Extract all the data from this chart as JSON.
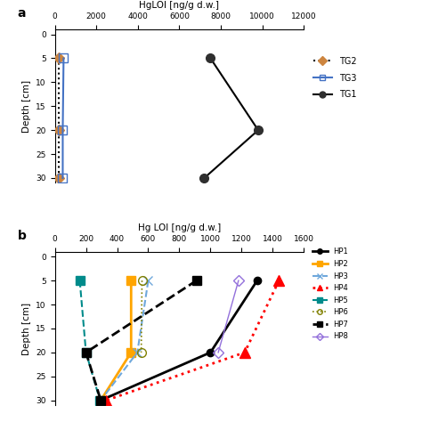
{
  "panel_a": {
    "title": "HgLOI [ng/g d.w.]",
    "xlim": [
      0,
      12000
    ],
    "xticks": [
      0,
      2000,
      4000,
      6000,
      8000,
      10000,
      12000
    ],
    "ylim": [
      31,
      -1
    ],
    "yticks": [
      0,
      5,
      10,
      15,
      20,
      25,
      30
    ],
    "ylabel": "Depth [cm]",
    "TG1": {
      "depth": [
        5,
        20,
        30
      ],
      "values": [
        7500,
        9800,
        7200
      ]
    },
    "TG2": {
      "depth": [
        5,
        20,
        30
      ],
      "values": [
        180,
        180,
        180
      ]
    },
    "TG3": {
      "depth": [
        5,
        20,
        30
      ],
      "values": [
        420,
        380,
        380
      ]
    }
  },
  "panel_b": {
    "title": "Hg LOI [ng/g d.w.]",
    "xlim": [
      0,
      1600
    ],
    "xticks": [
      0,
      200,
      400,
      600,
      800,
      1000,
      1200,
      1400,
      1600
    ],
    "ylim": [
      31,
      -1
    ],
    "yticks": [
      0,
      5,
      10,
      15,
      20,
      25,
      30
    ],
    "ylabel": "Depth [cm]"
  },
  "hp_series": {
    "HP1": {
      "depth": [
        5,
        20,
        30
      ],
      "values": [
        1300,
        1000,
        295
      ],
      "color": "#000000",
      "ls": "-",
      "marker": "o",
      "ms": 6,
      "lw": 2.0,
      "mfc": "#000000"
    },
    "HP2": {
      "depth": [
        5,
        20,
        30
      ],
      "values": [
        490,
        490,
        295
      ],
      "color": "#FFA500",
      "ls": "-",
      "marker": "s",
      "ms": 7,
      "lw": 2.0,
      "mfc": "#FFA500"
    },
    "HP3": {
      "depth": [
        5,
        20,
        30
      ],
      "values": [
        600,
        530,
        295
      ],
      "color": "#6FA8DC",
      "ls": "--",
      "marker": "x",
      "ms": 7,
      "lw": 1.5,
      "mfc": "#6FA8DC"
    },
    "HP4": {
      "depth": [
        5,
        20,
        30
      ],
      "values": [
        1440,
        1220,
        330
      ],
      "color": "#FF0000",
      "ls": ":",
      "marker": "^",
      "ms": 8,
      "lw": 2.0,
      "mfc": "#FF0000"
    },
    "HP5": {
      "depth": [
        5,
        20,
        30
      ],
      "values": [
        160,
        200,
        290
      ],
      "color": "#008B8B",
      "ls": "--",
      "marker": "s",
      "ms": 7,
      "lw": 1.5,
      "mfc": "#008B8B"
    },
    "HP6": {
      "depth": [
        5,
        20
      ],
      "values": [
        560,
        555
      ],
      "color": "#808000",
      "ls": ":",
      "marker": "o",
      "ms": 7,
      "lw": 1.2,
      "mfc": "none"
    },
    "HP7": {
      "depth": [
        5,
        20,
        30
      ],
      "values": [
        910,
        200,
        295
      ],
      "color": "#000000",
      "ls": "--",
      "marker": "s",
      "ms": 7,
      "lw": 2.0,
      "mfc": "#000000"
    },
    "HP8": {
      "depth": [
        5,
        20
      ],
      "values": [
        1180,
        1050
      ],
      "color": "#9370DB",
      "ls": "-",
      "marker": "D",
      "ms": 6,
      "lw": 1.0,
      "mfc": "none"
    }
  },
  "legend_b_order": [
    "HP1",
    "HP2",
    "HP3",
    "HP4",
    "HP5",
    "HP6",
    "HP7",
    "HP8"
  ]
}
